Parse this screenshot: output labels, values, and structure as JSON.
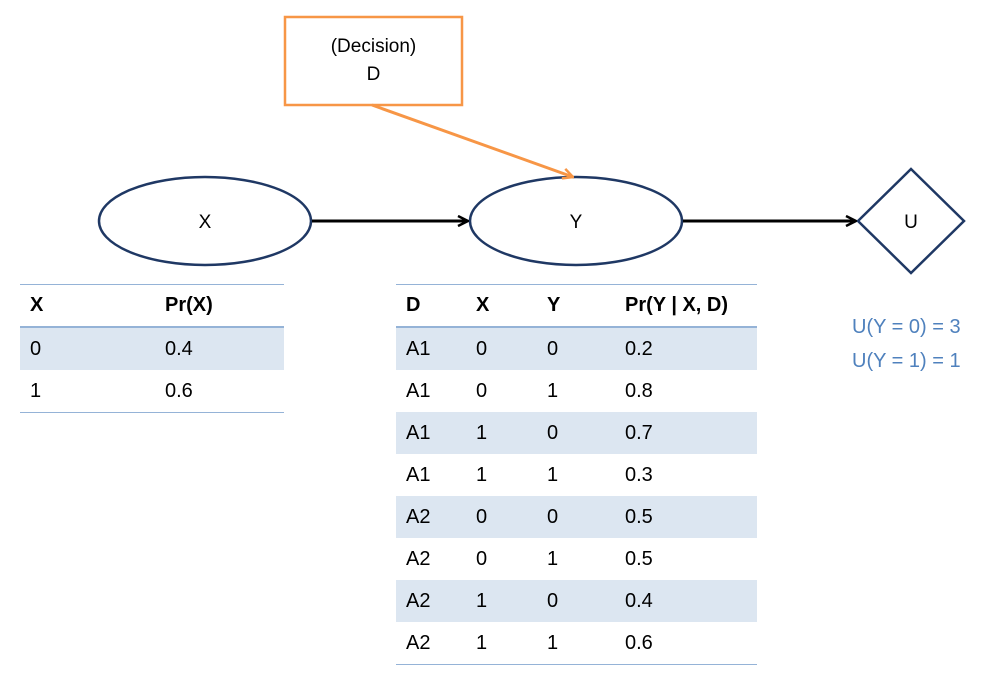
{
  "decision_node": {
    "line1": "(Decision)",
    "line2": "D"
  },
  "nodes": {
    "x": "X",
    "y": "Y",
    "u": "U"
  },
  "table_x": {
    "headers": [
      "X",
      "Pr(X)"
    ],
    "rows": [
      [
        "0",
        "0.4"
      ],
      [
        "1",
        "0.6"
      ]
    ]
  },
  "table_y": {
    "headers": [
      "D",
      "X",
      "Y",
      "Pr(Y | X, D)"
    ],
    "rows": [
      [
        "A1",
        "0",
        "0",
        "0.2"
      ],
      [
        "A1",
        "0",
        "1",
        "0.8"
      ],
      [
        "A1",
        "1",
        "0",
        "0.7"
      ],
      [
        "A1",
        "1",
        "1",
        "0.3"
      ],
      [
        "A2",
        "0",
        "0",
        "0.5"
      ],
      [
        "A2",
        "0",
        "1",
        "0.5"
      ],
      [
        "A2",
        "1",
        "0",
        "0.4"
      ],
      [
        "A2",
        "1",
        "1",
        "0.6"
      ]
    ]
  },
  "utility": [
    "U(Y = 0) = 3",
    "U(Y = 1) = 1"
  ],
  "colors": {
    "decision": "#f79646",
    "chance": "#1f3864",
    "table_rule": "#95b3d7",
    "table_band": "#dce6f1",
    "utility_text": "#4f81bd"
  }
}
